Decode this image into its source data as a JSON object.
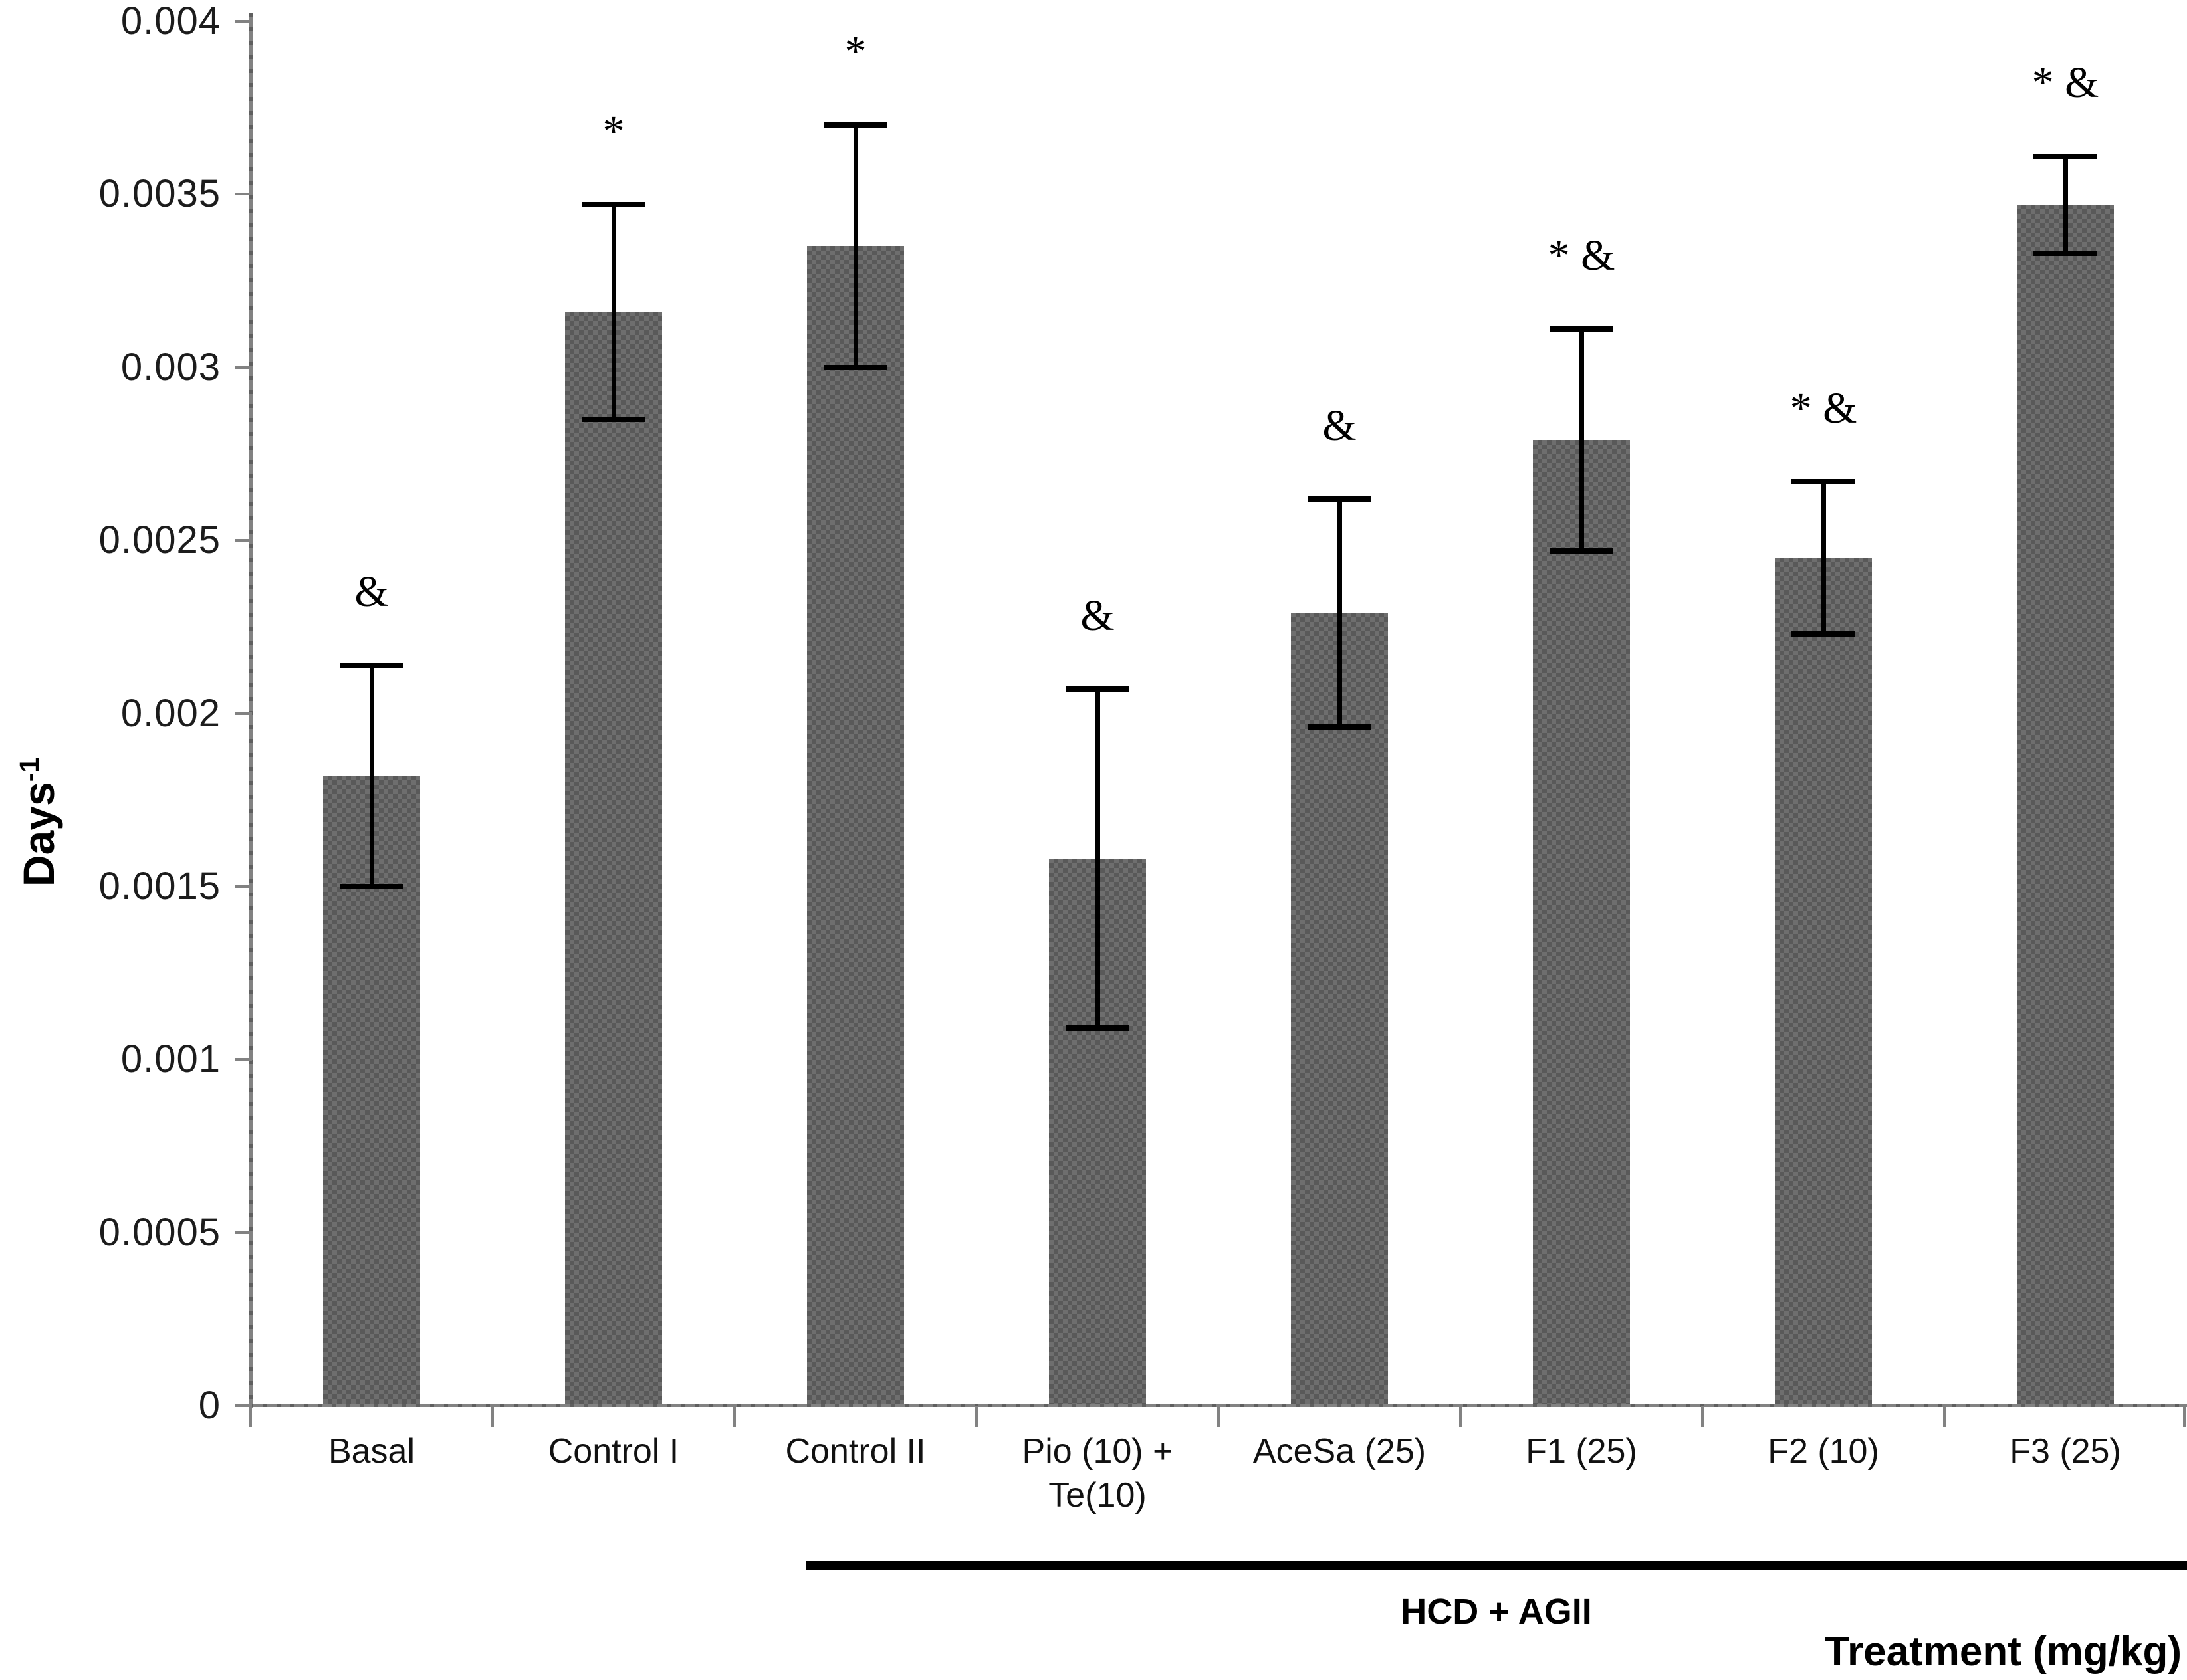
{
  "chart_data": {
    "type": "bar",
    "title": "",
    "ylabel": {
      "text": "Days",
      "superscript": "-1"
    },
    "xlabel": "Treatment (mg/kg)",
    "ylim": [
      0,
      0.004
    ],
    "y_tick_step": 0.0005,
    "y_tick_labels": [
      "0",
      "0.0005",
      "0.001",
      "0.0015",
      "0.002",
      "0.0025",
      "0.003",
      "0.0035",
      "0.004"
    ],
    "grid": false,
    "legend_position": "none",
    "categories": [
      "Basal",
      "Control I",
      "Control II",
      "Pio (10) + Te(10)",
      "AceSa (25)",
      "F1 (25)",
      "F2 (10)",
      "F3 (25)"
    ],
    "category_label_lines": [
      [
        "Basal"
      ],
      [
        "Control I"
      ],
      [
        "Control II"
      ],
      [
        "Pio (10) +",
        "Te(10)"
      ],
      [
        "AceSa (25)"
      ],
      [
        "F1 (25)"
      ],
      [
        "F2 (10)"
      ],
      [
        "F3 (25)"
      ]
    ],
    "values": [
      0.00182,
      0.00316,
      0.00335,
      0.00158,
      0.00229,
      0.00279,
      0.00245,
      0.00347
    ],
    "error_bars": [
      0.00032,
      0.00031,
      0.00035,
      0.00049,
      0.00033,
      0.00032,
      0.00022,
      0.00014
    ],
    "significance_markers": [
      "&",
      "*",
      "*",
      "&",
      "&",
      "* &",
      "* &",
      "* &"
    ],
    "group_annotation": {
      "label": "HCD + AGII",
      "start_category": "Control II",
      "end_category": "F3 (25)",
      "start_index": 2,
      "end_index": 7
    }
  },
  "colors": {
    "background": "#ffffff",
    "bar_base": "#6e6e6e",
    "bar_pattern_dot": "#595959",
    "axis": "#828282",
    "error_bar": "#000000",
    "annotation_line": "#000000",
    "text": "#111111"
  }
}
